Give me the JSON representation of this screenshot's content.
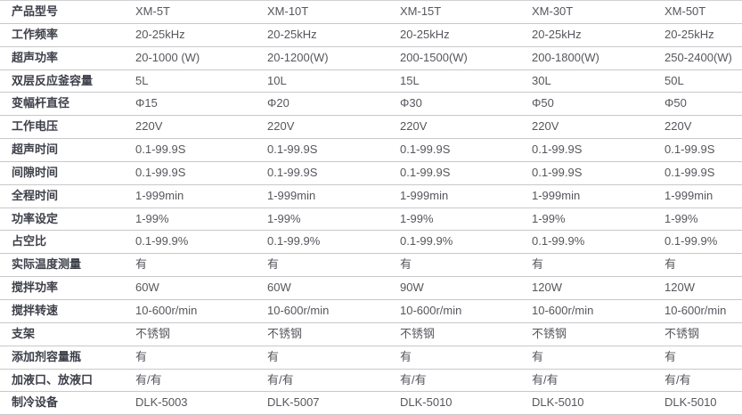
{
  "table": {
    "header": {
      "label": "产品型号",
      "models": [
        "XM-5T",
        "XM-10T",
        "XM-15T",
        "XM-30T",
        "XM-50T"
      ]
    },
    "rows": [
      {
        "label": "工作频率",
        "values": [
          "20-25kHz",
          "20-25kHz",
          "20-25kHz",
          "20-25kHz",
          "20-25kHz"
        ]
      },
      {
        "label": "超声功率",
        "values": [
          "20-1000 (W)",
          "20-1200(W)",
          "200-1500(W)",
          "200-1800(W)",
          "250-2400(W)"
        ]
      },
      {
        "label": "双层反应釜容量",
        "values": [
          "5L",
          "10L",
          "15L",
          "30L",
          "50L"
        ]
      },
      {
        "label": "变幅杆直径",
        "values": [
          "Φ15",
          "Φ20",
          "Φ30",
          "Φ50",
          "Φ50"
        ]
      },
      {
        "label": "工作电压",
        "values": [
          "220V",
          "220V",
          "220V",
          "220V",
          "220V"
        ]
      },
      {
        "label": "超声时间",
        "values": [
          "0.1-99.9S",
          "0.1-99.9S",
          "0.1-99.9S",
          "0.1-99.9S",
          "0.1-99.9S"
        ]
      },
      {
        "label": "间隙时间",
        "values": [
          "0.1-99.9S",
          "0.1-99.9S",
          "0.1-99.9S",
          "0.1-99.9S",
          "0.1-99.9S"
        ]
      },
      {
        "label": "全程时间",
        "values": [
          "1-999min",
          "1-999min",
          "1-999min",
          "1-999min",
          "1-999min"
        ]
      },
      {
        "label": "功率设定",
        "values": [
          "1-99%",
          "1-99%",
          "1-99%",
          "1-99%",
          "1-99%"
        ]
      },
      {
        "label": "占空比",
        "values": [
          "0.1-99.9%",
          "0.1-99.9%",
          "0.1-99.9%",
          "0.1-99.9%",
          "0.1-99.9%"
        ]
      },
      {
        "label": "实际温度测量",
        "values": [
          "有",
          "有",
          "有",
          "有",
          "有"
        ]
      },
      {
        "label": "搅拌功率",
        "values": [
          "60W",
          "60W",
          "90W",
          "120W",
          "120W"
        ]
      },
      {
        "label": "搅拌转速",
        "values": [
          "10-600r/min",
          "10-600r/min",
          "10-600r/min",
          "10-600r/min",
          "10-600r/min"
        ]
      },
      {
        "label": "支架",
        "values": [
          "不锈钢",
          "不锈钢",
          "不锈钢",
          "不锈钢",
          "不锈钢"
        ]
      },
      {
        "label": "添加剂容量瓶",
        "values": [
          "有",
          "有",
          "有",
          "有",
          "有"
        ]
      },
      {
        "label": "加液口、放液口",
        "values": [
          "有/有",
          "有/有",
          "有/有",
          "有/有",
          "有/有"
        ]
      },
      {
        "label": "制冷设备",
        "values": [
          "DLK-5003",
          "DLK-5007",
          "DLK-5010",
          "DLK-5010",
          "DLK-5010"
        ]
      }
    ],
    "colors": {
      "label_text": "#3d3f49",
      "value_text": "#56575d",
      "divider": "#c8c8cb",
      "background": "#ffffff"
    }
  }
}
